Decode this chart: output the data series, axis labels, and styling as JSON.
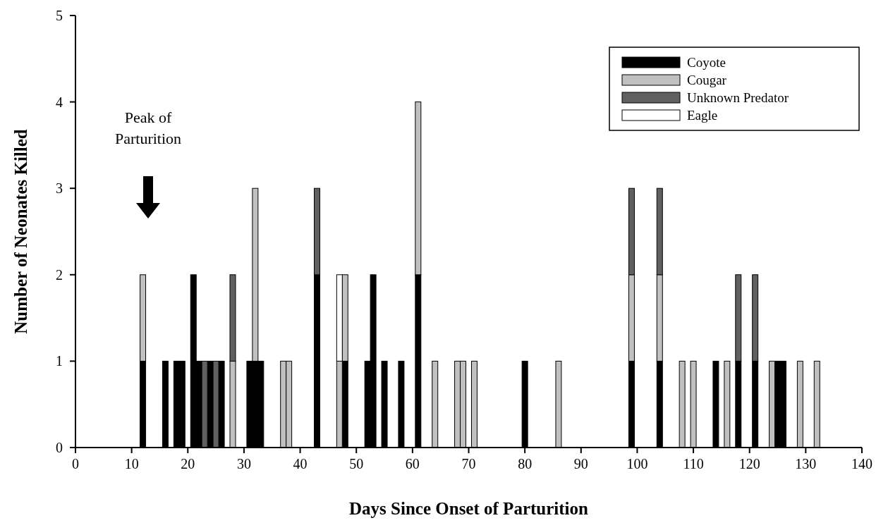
{
  "chart_data": {
    "type": "bar",
    "stacked": true,
    "xlabel": "Days Since Onset of Parturition",
    "ylabel": "Number of Neonates Killed",
    "x": [
      12,
      16,
      18,
      19,
      21,
      22,
      23,
      24,
      25,
      26,
      28,
      31,
      32,
      33,
      37,
      38,
      43,
      47,
      48,
      52,
      53,
      55,
      58,
      61,
      64,
      68,
      69,
      71,
      80,
      86,
      99,
      104,
      108,
      110,
      114,
      116,
      118,
      121,
      124,
      125,
      126,
      129,
      132
    ],
    "series": [
      {
        "name": "Coyote",
        "color": "#000000",
        "values": [
          1,
          1,
          1,
          1,
          2,
          1,
          null,
          1,
          null,
          1,
          null,
          1,
          1,
          1,
          null,
          null,
          2,
          null,
          1,
          1,
          2,
          1,
          1,
          2,
          null,
          null,
          null,
          null,
          1,
          null,
          1,
          1,
          null,
          null,
          1,
          null,
          1,
          1,
          null,
          1,
          1,
          null,
          null
        ]
      },
      {
        "name": "Cougar",
        "color": "#c0c0c0",
        "values": [
          1,
          null,
          null,
          null,
          null,
          null,
          null,
          null,
          null,
          null,
          1,
          null,
          2,
          null,
          1,
          1,
          null,
          1,
          1,
          null,
          null,
          null,
          null,
          2,
          1,
          1,
          1,
          1,
          null,
          1,
          1,
          1,
          1,
          1,
          null,
          1,
          null,
          null,
          1,
          null,
          null,
          1,
          1
        ]
      },
      {
        "name": "Unknown Predator",
        "color": "#606060",
        "values": [
          null,
          null,
          null,
          null,
          null,
          null,
          1,
          null,
          1,
          null,
          1,
          null,
          null,
          null,
          null,
          null,
          1,
          null,
          null,
          null,
          null,
          null,
          null,
          null,
          null,
          null,
          null,
          null,
          null,
          null,
          1,
          1,
          null,
          null,
          null,
          null,
          1,
          1,
          null,
          null,
          null,
          null,
          null
        ]
      },
      {
        "name": "Eagle",
        "color": "#ffffff",
        "values": [
          null,
          null,
          null,
          null,
          null,
          null,
          null,
          null,
          null,
          null,
          null,
          null,
          null,
          null,
          null,
          null,
          null,
          1,
          null,
          null,
          null,
          null,
          null,
          null,
          null,
          null,
          null,
          null,
          null,
          null,
          null,
          null,
          null,
          null,
          null,
          null,
          null,
          null,
          null,
          null,
          null,
          null,
          null
        ]
      }
    ],
    "xlim": [
      0,
      140
    ],
    "xticks": [
      0,
      10,
      20,
      30,
      40,
      50,
      60,
      70,
      80,
      90,
      100,
      110,
      120,
      130,
      140
    ],
    "ylim": [
      0,
      5
    ],
    "yticks": [
      0,
      1,
      2,
      3,
      4,
      5
    ],
    "legend": "top right",
    "grid": false,
    "annotations": [
      "Peak of Parturition"
    ]
  }
}
